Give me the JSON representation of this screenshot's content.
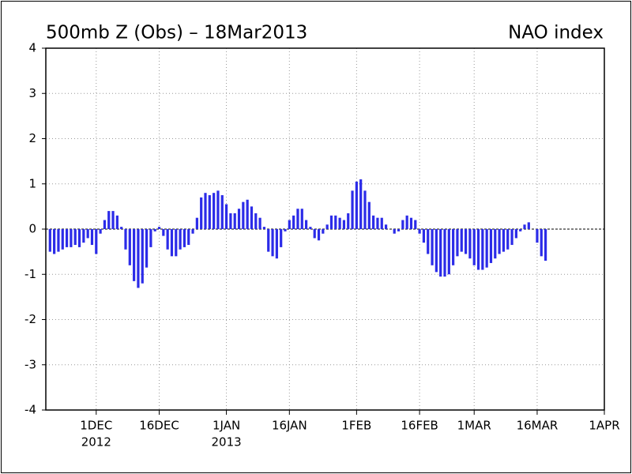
{
  "chart_data": {
    "type": "bar",
    "title": "500mb Z (Obs) – 18Mar2013",
    "subtitle": "NAO index",
    "color": "#2b2be8",
    "grid": true,
    "ylim": [
      -4,
      4
    ],
    "yticks": [
      -4,
      -3,
      -2,
      -1,
      0,
      1,
      2,
      3,
      4
    ],
    "xlim": [
      "2012-11-19",
      "2013-04-01"
    ],
    "xticks": [
      {
        "value": "2012-12-01",
        "label": "1DEC"
      },
      {
        "value": "2012-12-16",
        "label": "16DEC"
      },
      {
        "value": "2013-01-01",
        "label": "1JAN"
      },
      {
        "value": "2013-01-16",
        "label": "16JAN"
      },
      {
        "value": "2013-02-01",
        "label": "1FEB"
      },
      {
        "value": "2013-02-16",
        "label": "16FEB"
      },
      {
        "value": "2013-03-01",
        "label": "1MAR"
      },
      {
        "value": "2013-03-16",
        "label": "16MAR"
      },
      {
        "value": "2013-04-01",
        "label": "1APR"
      }
    ],
    "year_labels": [
      {
        "value": "2012-12-01",
        "label": "2012"
      },
      {
        "value": "2013-01-01",
        "label": "2013"
      }
    ],
    "x": [
      "2012-11-20",
      "2012-11-21",
      "2012-11-22",
      "2012-11-23",
      "2012-11-24",
      "2012-11-25",
      "2012-11-26",
      "2012-11-27",
      "2012-11-28",
      "2012-11-29",
      "2012-11-30",
      "2012-12-01",
      "2012-12-02",
      "2012-12-03",
      "2012-12-04",
      "2012-12-05",
      "2012-12-06",
      "2012-12-07",
      "2012-12-08",
      "2012-12-09",
      "2012-12-10",
      "2012-12-11",
      "2012-12-12",
      "2012-12-13",
      "2012-12-14",
      "2012-12-15",
      "2012-12-16",
      "2012-12-17",
      "2012-12-18",
      "2012-12-19",
      "2012-12-20",
      "2012-12-21",
      "2012-12-22",
      "2012-12-23",
      "2012-12-24",
      "2012-12-25",
      "2012-12-26",
      "2012-12-27",
      "2012-12-28",
      "2012-12-29",
      "2012-12-30",
      "2012-12-31",
      "2013-01-01",
      "2013-01-02",
      "2013-01-03",
      "2013-01-04",
      "2013-01-05",
      "2013-01-06",
      "2013-01-07",
      "2013-01-08",
      "2013-01-09",
      "2013-01-10",
      "2013-01-11",
      "2013-01-12",
      "2013-01-13",
      "2013-01-14",
      "2013-01-15",
      "2013-01-16",
      "2013-01-17",
      "2013-01-18",
      "2013-01-19",
      "2013-01-20",
      "2013-01-21",
      "2013-01-22",
      "2013-01-23",
      "2013-01-24",
      "2013-01-25",
      "2013-01-26",
      "2013-01-27",
      "2013-01-28",
      "2013-01-29",
      "2013-01-30",
      "2013-01-31",
      "2013-02-01",
      "2013-02-02",
      "2013-02-03",
      "2013-02-04",
      "2013-02-05",
      "2013-02-06",
      "2013-02-07",
      "2013-02-08",
      "2013-02-09",
      "2013-02-10",
      "2013-02-11",
      "2013-02-12",
      "2013-02-13",
      "2013-02-14",
      "2013-02-15",
      "2013-02-16",
      "2013-02-17",
      "2013-02-18",
      "2013-02-19",
      "2013-02-20",
      "2013-02-21",
      "2013-02-22",
      "2013-02-23",
      "2013-02-24",
      "2013-02-25",
      "2013-02-26",
      "2013-02-27",
      "2013-02-28",
      "2013-03-01",
      "2013-03-02",
      "2013-03-03",
      "2013-03-04",
      "2013-03-05",
      "2013-03-06",
      "2013-03-07",
      "2013-03-08",
      "2013-03-09",
      "2013-03-10",
      "2013-03-11",
      "2013-03-12",
      "2013-03-13",
      "2013-03-14",
      "2013-03-15",
      "2013-03-16",
      "2013-03-17",
      "2013-03-18"
    ],
    "values": [
      -0.5,
      -0.55,
      -0.5,
      -0.45,
      -0.4,
      -0.4,
      -0.35,
      -0.4,
      -0.3,
      -0.2,
      -0.35,
      -0.55,
      -0.1,
      0.2,
      0.4,
      0.4,
      0.3,
      0.05,
      -0.45,
      -0.8,
      -1.15,
      -1.3,
      -1.2,
      -0.85,
      -0.4,
      -0.05,
      0.05,
      -0.15,
      -0.45,
      -0.6,
      -0.6,
      -0.45,
      -0.4,
      -0.35,
      -0.1,
      0.25,
      0.7,
      0.8,
      0.75,
      0.8,
      0.85,
      0.75,
      0.55,
      0.35,
      0.35,
      0.45,
      0.6,
      0.65,
      0.5,
      0.35,
      0.25,
      0.05,
      -0.5,
      -0.6,
      -0.65,
      -0.4,
      -0.05,
      0.2,
      0.3,
      0.45,
      0.45,
      0.2,
      0.05,
      -0.2,
      -0.25,
      -0.1,
      0.1,
      0.3,
      0.3,
      0.25,
      0.2,
      0.35,
      0.85,
      1.05,
      1.1,
      0.85,
      0.6,
      0.3,
      0.25,
      0.25,
      0.1,
      0.0,
      -0.1,
      -0.05,
      0.2,
      0.3,
      0.25,
      0.2,
      -0.1,
      -0.3,
      -0.55,
      -0.8,
      -0.95,
      -1.05,
      -1.05,
      -1.0,
      -0.8,
      -0.6,
      -0.5,
      -0.55,
      -0.65,
      -0.8,
      -0.9,
      -0.9,
      -0.85,
      -0.75,
      -0.65,
      -0.55,
      -0.5,
      -0.45,
      -0.35,
      -0.2,
      -0.05,
      0.1,
      0.15,
      0.0,
      -0.3,
      -0.6,
      -0.7
    ]
  }
}
